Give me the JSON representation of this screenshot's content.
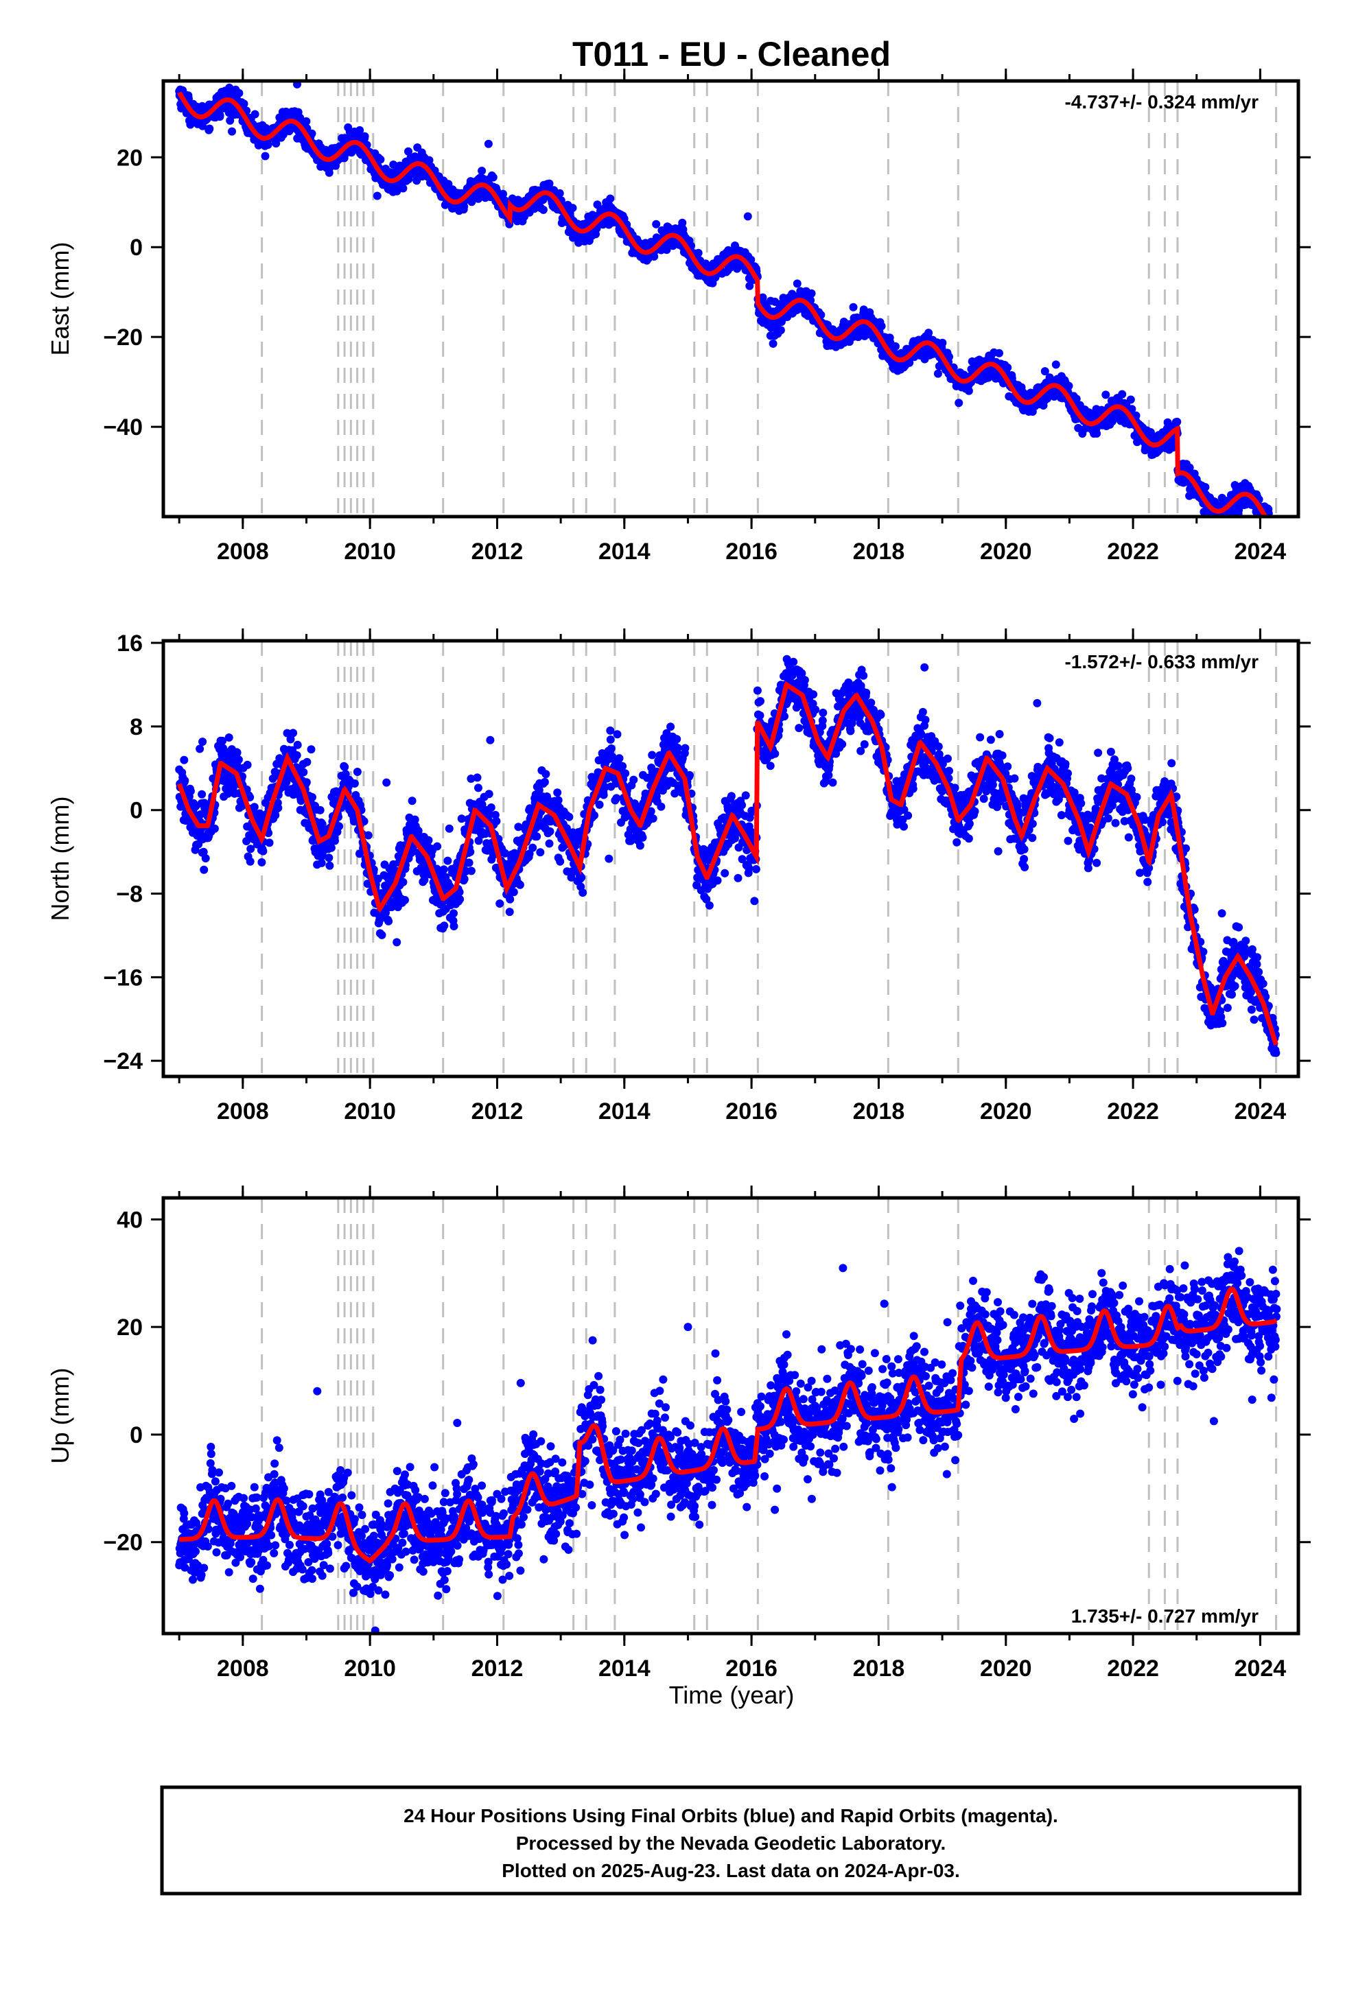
{
  "title": "T011  - EU - Cleaned",
  "xlabel": "Time (year)",
  "footer": {
    "line1": "24 Hour Positions Using Final Orbits (blue) and Rapid Orbits (magenta).",
    "line2": "Processed by the Nevada Geodetic Laboratory.",
    "line3": "Plotted on 2025-Aug-23. Last data on 2024-Apr-03."
  },
  "colors": {
    "points": "#0000ff",
    "model": "#ff0000",
    "events": "#c0c0c0",
    "axis": "#000000"
  },
  "chart_data": [
    {
      "type": "scatter",
      "panel": "east",
      "ylabel": "East (mm)",
      "rate": "-4.737+/- 0.324 mm/yr",
      "rate_position": "top-right",
      "xlim": [
        2006.75,
        2024.6
      ],
      "ylim": [
        -60,
        37
      ],
      "xticks": [
        2008,
        2010,
        2012,
        2014,
        2016,
        2018,
        2020,
        2022,
        2024
      ],
      "xtick_labels": [
        "2008",
        "2010",
        "2012",
        "2014",
        "2016",
        "2018",
        "2020",
        "2022",
        "2024"
      ],
      "yticks": [
        20,
        0,
        -20,
        -40
      ],
      "ytick_labels": [
        "20",
        "0",
        "−20",
        "−40"
      ],
      "model": {
        "start": 2007.0,
        "end": 2024.26,
        "rate": -4.737,
        "offset0": 33.5,
        "annual_amp": 3.0,
        "annual_phase": 0.8,
        "steps": [
          [
            2012.2,
            3.0
          ],
          [
            2016.1,
            -5.0
          ],
          [
            2022.7,
            -10.0
          ]
        ],
        "noise_sd": 1.3
      },
      "grid": false
    },
    {
      "type": "scatter",
      "panel": "north",
      "ylabel": "North (mm)",
      "rate": "-1.572+/- 0.633 mm/yr",
      "rate_position": "top-right",
      "xlim": [
        2006.75,
        2024.6
      ],
      "ylim": [
        -25.5,
        16.2
      ],
      "xticks": [
        2008,
        2010,
        2012,
        2014,
        2016,
        2018,
        2020,
        2022,
        2024
      ],
      "xtick_labels": [
        "2008",
        "2010",
        "2012",
        "2014",
        "2016",
        "2018",
        "2020",
        "2022",
        "2024"
      ],
      "yticks": [
        16,
        8,
        0,
        -8,
        -16,
        -24
      ],
      "ytick_labels": [
        "16",
        "8",
        "0",
        "−8",
        "−16",
        "−24"
      ],
      "model_points": [
        [
          2007.0,
          2.5
        ],
        [
          2007.15,
          0.0
        ],
        [
          2007.3,
          -1.5
        ],
        [
          2007.45,
          -1.5
        ],
        [
          2007.65,
          4.5
        ],
        [
          2007.9,
          3.5
        ],
        [
          2008.15,
          -1.0
        ],
        [
          2008.3,
          -2.8
        ],
        [
          2008.45,
          0.5
        ],
        [
          2008.7,
          5.0
        ],
        [
          2008.95,
          2.0
        ],
        [
          2009.2,
          -3.0
        ],
        [
          2009.35,
          -2.5
        ],
        [
          2009.6,
          2.0
        ],
        [
          2009.8,
          0.0
        ],
        [
          2010.0,
          -6.0
        ],
        [
          2010.15,
          -9.5
        ],
        [
          2010.4,
          -7.0
        ],
        [
          2010.65,
          -2.5
        ],
        [
          2010.9,
          -4.5
        ],
        [
          2011.15,
          -8.5
        ],
        [
          2011.35,
          -7.5
        ],
        [
          2011.65,
          0.0
        ],
        [
          2011.9,
          -1.5
        ],
        [
          2012.15,
          -7.5
        ],
        [
          2012.35,
          -5.0
        ],
        [
          2012.65,
          0.5
        ],
        [
          2012.9,
          -0.5
        ],
        [
          2013.15,
          -3.5
        ],
        [
          2013.3,
          -5.5
        ],
        [
          2013.45,
          0.0
        ],
        [
          2013.7,
          4.0
        ],
        [
          2013.9,
          3.5
        ],
        [
          2014.1,
          0.0
        ],
        [
          2014.25,
          -1.5
        ],
        [
          2014.45,
          2.0
        ],
        [
          2014.7,
          5.5
        ],
        [
          2014.95,
          3.0
        ],
        [
          2015.15,
          -4.5
        ],
        [
          2015.3,
          -6.5
        ],
        [
          2015.5,
          -3.5
        ],
        [
          2015.7,
          -0.5
        ],
        [
          2015.9,
          -2.5
        ],
        [
          2016.08,
          -4.5
        ],
        [
          2016.09,
          8.5
        ],
        [
          2016.3,
          6.0
        ],
        [
          2016.55,
          12.0
        ],
        [
          2016.8,
          11.0
        ],
        [
          2017.05,
          6.5
        ],
        [
          2017.2,
          5.0
        ],
        [
          2017.45,
          9.5
        ],
        [
          2017.65,
          11.0
        ],
        [
          2017.9,
          8.5
        ],
        [
          2018.05,
          6.0
        ],
        [
          2018.2,
          1.0
        ],
        [
          2018.35,
          0.5
        ],
        [
          2018.65,
          6.5
        ],
        [
          2018.9,
          4.5
        ],
        [
          2019.1,
          2.0
        ],
        [
          2019.25,
          -1.0
        ],
        [
          2019.45,
          0.5
        ],
        [
          2019.7,
          5.0
        ],
        [
          2019.95,
          3.0
        ],
        [
          2020.15,
          -1.0
        ],
        [
          2020.25,
          -2.5
        ],
        [
          2020.45,
          1.0
        ],
        [
          2020.65,
          4.0
        ],
        [
          2020.9,
          2.5
        ],
        [
          2021.15,
          -1.0
        ],
        [
          2021.3,
          -4.0
        ],
        [
          2021.45,
          -1.0
        ],
        [
          2021.65,
          2.5
        ],
        [
          2021.9,
          1.5
        ],
        [
          2022.1,
          -1.5
        ],
        [
          2022.25,
          -5.0
        ],
        [
          2022.4,
          -0.5
        ],
        [
          2022.6,
          1.5
        ],
        [
          2022.7,
          -2.0
        ],
        [
          2022.9,
          -10.0
        ],
        [
          2023.1,
          -16.0
        ],
        [
          2023.25,
          -19.5
        ],
        [
          2023.45,
          -16.0
        ],
        [
          2023.65,
          -14.0
        ],
        [
          2023.85,
          -16.0
        ],
        [
          2024.05,
          -18.5
        ],
        [
          2024.25,
          -22.5
        ]
      ],
      "noise_sd": 1.4,
      "grid": false
    },
    {
      "type": "scatter",
      "panel": "up",
      "ylabel": "Up (mm)",
      "rate": "1.735+/- 0.727 mm/yr",
      "rate_position": "bottom-right",
      "xlim": [
        2006.75,
        2024.6
      ],
      "ylim": [
        -37,
        44
      ],
      "xticks": [
        2008,
        2010,
        2012,
        2014,
        2016,
        2018,
        2020,
        2022,
        2024
      ],
      "xtick_labels": [
        "2008",
        "2010",
        "2012",
        "2014",
        "2016",
        "2018",
        "2020",
        "2022",
        "2024"
      ],
      "yticks": [
        40,
        20,
        0,
        -20
      ],
      "ytick_labels": [
        "40",
        "20",
        "0",
        "−20"
      ],
      "model": {
        "base_points": [
          [
            2007.0,
            -19.5
          ],
          [
            2008.3,
            -19.0
          ],
          [
            2009.5,
            -19.5
          ],
          [
            2010.0,
            -23.5
          ],
          [
            2010.3,
            -20.0
          ],
          [
            2012.2,
            -19.0
          ],
          [
            2012.25,
            -15.5
          ],
          [
            2013.25,
            -11.5
          ],
          [
            2013.3,
            -2.0
          ],
          [
            2013.8,
            -9.0
          ],
          [
            2016.05,
            -5.0
          ],
          [
            2016.1,
            1.0
          ],
          [
            2019.25,
            4.5
          ],
          [
            2019.3,
            13.5
          ],
          [
            2021.0,
            15.5
          ],
          [
            2022.7,
            17.0
          ],
          [
            2022.75,
            19.0
          ],
          [
            2024.26,
            21.0
          ]
        ],
        "pulse_amp": 7.0,
        "pulse_center": 0.55,
        "pulse_width": 0.11,
        "noise_sd": 4.2
      },
      "xlabel": "Time (year)",
      "grid": false
    }
  ],
  "event_lines": [
    2008.3,
    2009.5,
    2009.6,
    2009.7,
    2009.8,
    2009.9,
    2010.05,
    2011.15,
    2012.1,
    2013.2,
    2013.4,
    2013.85,
    2015.1,
    2015.3,
    2016.1,
    2018.15,
    2019.25,
    2022.25,
    2022.5,
    2022.7,
    2024.25
  ]
}
